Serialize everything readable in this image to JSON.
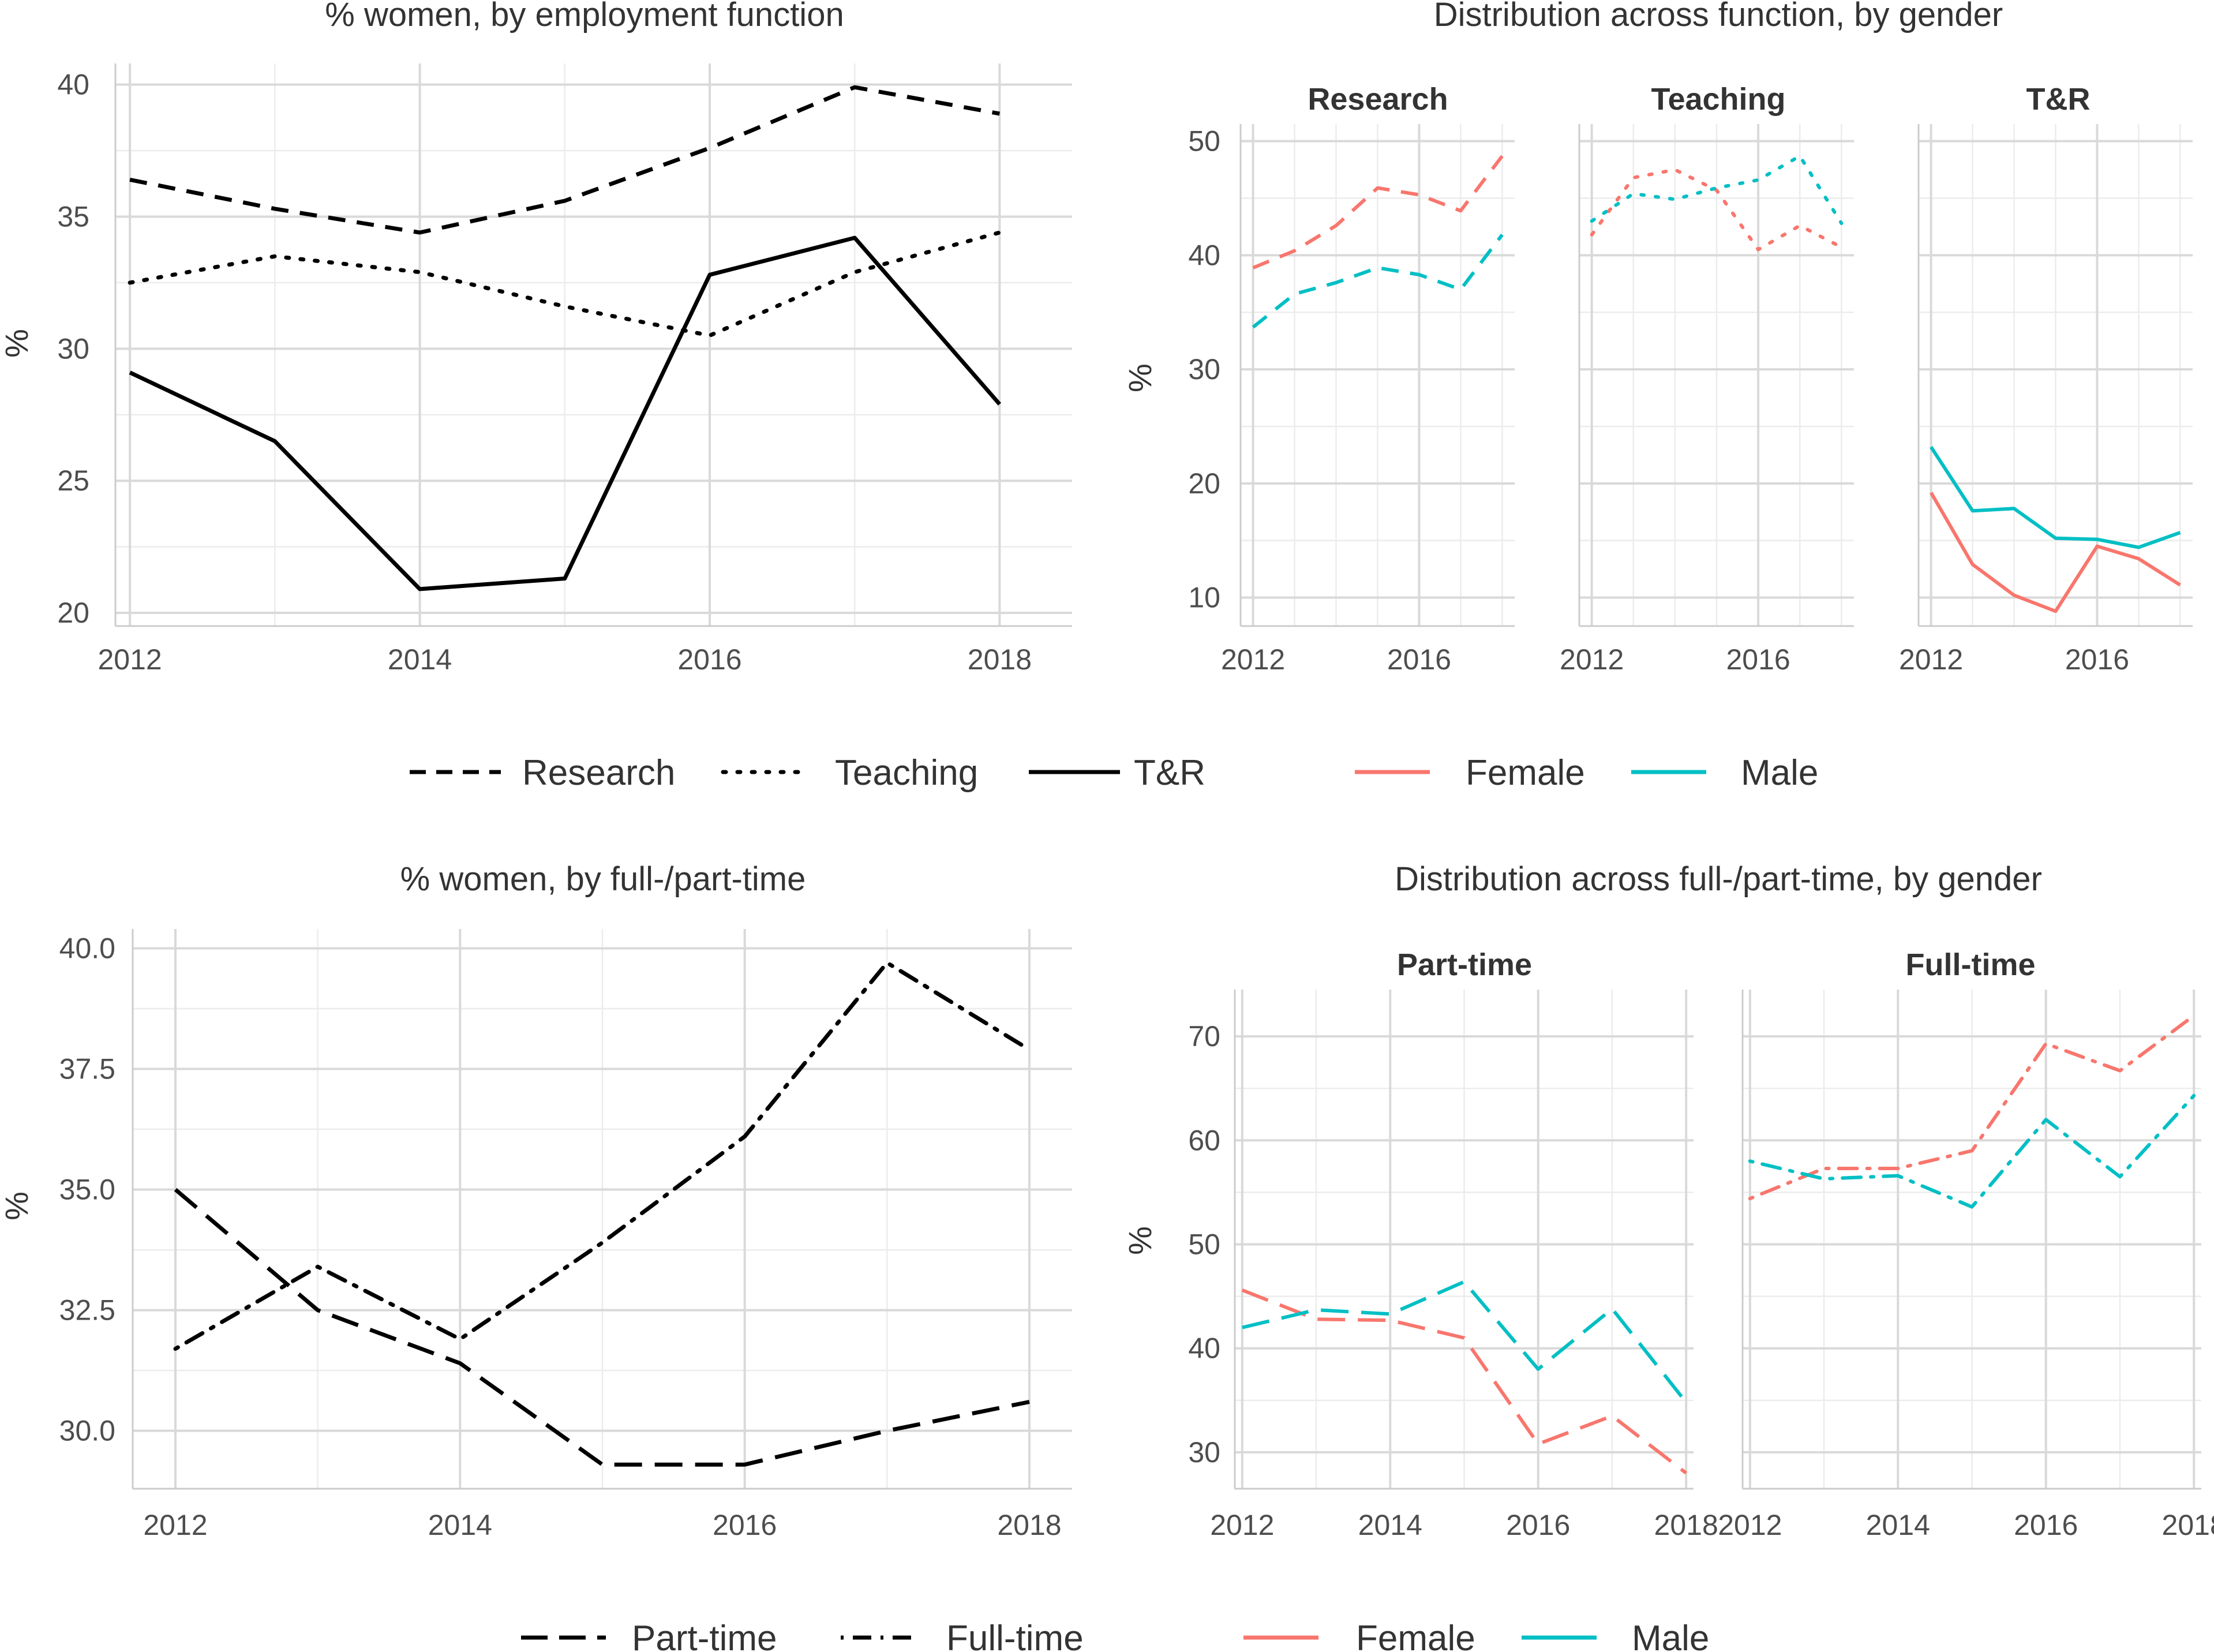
{
  "colors": {
    "female": "#F8766D",
    "male": "#00BFC4",
    "black": "#000000"
  },
  "chart_data": [
    {
      "id": "p1",
      "type": "line",
      "title": "% women, by employment function",
      "ylabel": "%",
      "x": [
        2012,
        2013,
        2014,
        2015,
        2016,
        2017,
        2018
      ],
      "xlim": [
        2011.9,
        2018.5
      ],
      "ylim": [
        19.5,
        40.8
      ],
      "xticks": [
        "2012",
        "2014",
        "2016",
        "2018"
      ],
      "yticks": [
        "20",
        "25",
        "30",
        "35",
        "40"
      ],
      "series": [
        {
          "name": "Research",
          "linetype": "dashed",
          "values": [
            36.4,
            35.3,
            34.4,
            35.6,
            37.6,
            39.9,
            38.9
          ]
        },
        {
          "name": "Teaching",
          "linetype": "dotted",
          "values": [
            32.5,
            33.5,
            32.9,
            31.6,
            30.5,
            32.9,
            34.4
          ]
        },
        {
          "name": "T&R",
          "linetype": "solid",
          "values": [
            29.1,
            26.5,
            20.9,
            21.3,
            32.8,
            34.2,
            27.9
          ]
        }
      ]
    },
    {
      "id": "p2",
      "type": "line",
      "title": "Distribution across function, by gender",
      "ylabel": "%",
      "x": [
        2012,
        2013,
        2014,
        2015,
        2016,
        2017,
        2018
      ],
      "xlim": [
        2011.7,
        2018.3
      ],
      "ylim": [
        7.5,
        51.5
      ],
      "xticks": [
        "2012",
        "2016"
      ],
      "yticks": [
        "10",
        "20",
        "30",
        "40",
        "50"
      ],
      "facets": [
        {
          "label": "Research",
          "linetype": "dashed",
          "series": [
            {
              "name": "Female",
              "values": [
                38.9,
                40.4,
                42.6,
                45.9,
                45.3,
                43.9,
                48.7
              ]
            },
            {
              "name": "Male",
              "values": [
                33.7,
                36.6,
                37.6,
                38.9,
                38.3,
                37.0,
                41.8
              ]
            }
          ]
        },
        {
          "label": "Teaching",
          "linetype": "dotted",
          "series": [
            {
              "name": "Female",
              "values": [
                41.8,
                46.8,
                47.5,
                45.7,
                40.5,
                42.6,
                40.7
              ]
            },
            {
              "name": "Male",
              "values": [
                43.0,
                45.4,
                44.9,
                45.9,
                46.6,
                48.7,
                42.8
              ]
            }
          ]
        },
        {
          "label": "T&R",
          "linetype": "solid",
          "series": [
            {
              "name": "Female",
              "values": [
                19.2,
                12.9,
                10.2,
                8.8,
                14.5,
                13.4,
                11.1
              ]
            },
            {
              "name": "Male",
              "values": [
                23.2,
                17.6,
                17.8,
                15.2,
                15.1,
                14.4,
                15.7
              ]
            }
          ]
        }
      ]
    },
    {
      "id": "p3",
      "type": "line",
      "title": "% women, by full-/part-time",
      "ylabel": "%",
      "x": [
        2012,
        2013,
        2014,
        2015,
        2016,
        2017,
        2018
      ],
      "xlim": [
        2011.7,
        2018.3
      ],
      "ylim": [
        28.8,
        40.4
      ],
      "xticks": [
        "2012",
        "2014",
        "2016",
        "2018"
      ],
      "yticks": [
        "30.0",
        "32.5",
        "35.0",
        "37.5",
        "40.0"
      ],
      "series": [
        {
          "name": "Part-time",
          "linetype": "longdash",
          "values": [
            35.0,
            32.5,
            31.4,
            29.3,
            29.3,
            30.0,
            30.6
          ]
        },
        {
          "name": "Full-time",
          "linetype": "dotdash",
          "values": [
            31.7,
            33.4,
            31.9,
            33.9,
            36.1,
            39.7,
            37.9
          ]
        }
      ]
    },
    {
      "id": "p4",
      "type": "line",
      "title": "Distribution across full-/part-time, by gender",
      "ylabel": "%",
      "x": [
        2012,
        2013,
        2014,
        2015,
        2016,
        2017,
        2018
      ],
      "xlim": [
        2011.9,
        2018.1
      ],
      "ylim": [
        26.5,
        74.5
      ],
      "xticks": [
        "2012",
        "2014",
        "2016",
        "2018"
      ],
      "yticks": [
        "30",
        "40",
        "50",
        "60",
        "70"
      ],
      "facets": [
        {
          "label": "Part-time",
          "linetype": "longdash",
          "series": [
            {
              "name": "Female",
              "values": [
                45.6,
                42.8,
                42.7,
                41.0,
                30.8,
                33.5,
                28.0
              ]
            },
            {
              "name": "Male",
              "values": [
                42.0,
                43.7,
                43.3,
                46.4,
                38.0,
                43.8,
                34.8
              ]
            }
          ]
        },
        {
          "label": "Full-time",
          "linetype": "dotdash",
          "series": [
            {
              "name": "Female",
              "values": [
                54.4,
                57.3,
                57.3,
                59.0,
                69.3,
                66.7,
                72.0
              ]
            },
            {
              "name": "Male",
              "values": [
                58.0,
                56.3,
                56.6,
                53.6,
                62.0,
                56.5,
                64.3
              ]
            }
          ]
        }
      ]
    }
  ],
  "legends": {
    "function": [
      "Research",
      "Teaching",
      "T&R"
    ],
    "function_gender": [
      "Female",
      "Male"
    ],
    "time": [
      "Part-time",
      "Full-time"
    ],
    "time_gender": [
      "Female",
      "Male"
    ]
  }
}
